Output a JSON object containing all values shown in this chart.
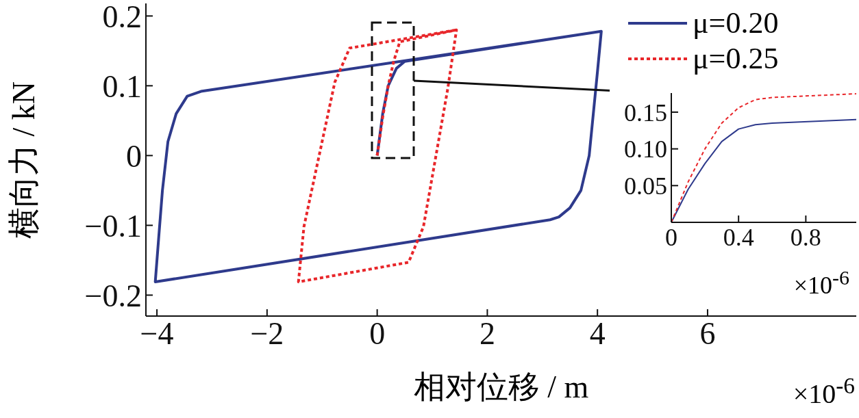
{
  "chart_data": [
    {
      "type": "line",
      "xlabel": "相对位移 / m",
      "ylabel": "横向力 / kN",
      "xlim": [
        -4.2,
        8.7
      ],
      "ylim": [
        -0.23,
        0.218
      ],
      "xticks": [
        {
          "value": -4,
          "label": "−4"
        },
        {
          "value": -2,
          "label": "−2"
        },
        0,
        2,
        4,
        6
      ],
      "yticks": [
        {
          "value": -0.2,
          "label": "−0.2"
        },
        {
          "value": -0.1,
          "label": "−0.1"
        },
        0,
        0.1,
        0.2
      ],
      "legend": "top right",
      "annotations": [
        "×10$^{-6}$"
      ],
      "series": [
        {
          "name": "μ=0.20",
          "color": "#2e3a8c",
          "line_style": "solid",
          "x": [
            0,
            0.1,
            0.2,
            0.35,
            0.5,
            4.07,
            4.0,
            3.85,
            3.7,
            3.5,
            3.3,
            3.14,
            -4.03,
            -3.97,
            -3.9,
            -3.8,
            -3.65,
            -3.45,
            -3.2,
            4.07
          ],
          "values": [
            0,
            0.06,
            0.1,
            0.125,
            0.135,
            0.178,
            0.12,
            0.0,
            -0.05,
            -0.075,
            -0.088,
            -0.092,
            -0.181,
            -0.12,
            -0.05,
            0.02,
            0.06,
            0.085,
            0.092,
            0.178
          ]
        },
        {
          "name": "μ=0.25",
          "color": "#e8262a",
          "line_style": "dotted",
          "x": [
            0,
            0.1,
            0.2,
            0.3,
            0.41,
            1.44,
            1.28,
            0.84,
            0.57,
            -1.43,
            -1.33,
            -0.77,
            -0.5,
            1.44
          ],
          "values": [
            0,
            0.055,
            0.1,
            0.135,
            0.163,
            0.18,
            0.095,
            -0.102,
            -0.153,
            -0.181,
            -0.102,
            0.105,
            0.154,
            0.18
          ]
        }
      ]
    },
    {
      "type": "line",
      "xlim": [
        0,
        1.1
      ],
      "ylim": [
        0,
        0.176
      ],
      "xticks": [
        0,
        0.4,
        0.8
      ],
      "yticks": [
        0.05,
        {
          "value": 0.1,
          "label": "0.10"
        },
        0.15
      ],
      "annotations": [
        "×10$^{-6}$"
      ],
      "series": [
        {
          "color": "#2e3a8c",
          "line_style": "solid",
          "x": [
            0,
            0.1,
            0.2,
            0.3,
            0.4,
            0.5,
            0.6,
            1.1
          ],
          "values": [
            0,
            0.045,
            0.08,
            0.11,
            0.127,
            0.133,
            0.135,
            0.14
          ]
        },
        {
          "color": "#e8262a",
          "line_style": "dotted",
          "x": [
            0,
            0.1,
            0.2,
            0.3,
            0.4,
            0.5,
            0.6,
            1.1
          ],
          "values": [
            0,
            0.055,
            0.1,
            0.135,
            0.156,
            0.167,
            0.17,
            0.175
          ]
        }
      ]
    }
  ]
}
